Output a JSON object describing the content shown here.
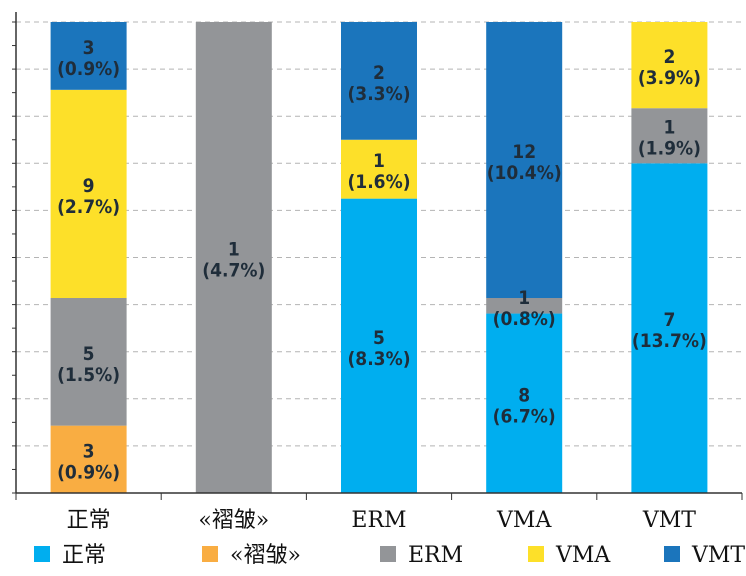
{
  "chart_data": {
    "type": "bar",
    "stacked": true,
    "categories": [
      "正常",
      "«褶皱»",
      "ERM",
      "VMA",
      "VMT"
    ],
    "series": [
      {
        "name": "正常",
        "color": "#00aeef",
        "counts": [
          null,
          null,
          "5",
          "8",
          "7"
        ],
        "percents": [
          null,
          null,
          "(8.3%)",
          "(6.7%)",
          "(13.7%)"
        ],
        "values": [
          0,
          0,
          62.5,
          38.1,
          70.0
        ]
      },
      {
        "name": "«褶皱»",
        "color": "#f9ad42",
        "counts": [
          "3",
          null,
          null,
          null,
          null
        ],
        "percents": [
          "(0.9%)",
          null,
          null,
          null,
          null
        ],
        "values": [
          14.3,
          0,
          0,
          0,
          0
        ]
      },
      {
        "name": "ERM",
        "color": "#939598",
        "counts": [
          "5",
          "1",
          null,
          "1",
          "1"
        ],
        "percents": [
          "(1.5%)",
          "(4.7%)",
          null,
          "(0.8%)",
          "(1.9%)"
        ],
        "values": [
          27.1,
          100,
          0,
          3.3,
          11.7
        ]
      },
      {
        "name": "VMA",
        "color": "#fde029",
        "counts": [
          "9",
          null,
          "1",
          null,
          "2"
        ],
        "percents": [
          "(2.7%)",
          null,
          "(1.6%)",
          null,
          "(3.9%)"
        ],
        "values": [
          44.2,
          0,
          12.5,
          0,
          18.3
        ]
      },
      {
        "name": "VMT",
        "color": "#1b75bc",
        "counts": [
          "3",
          null,
          "2",
          "12",
          null
        ],
        "percents": [
          "(0.9%)",
          null,
          "(3.3%)",
          "(10.4%)",
          null
        ],
        "values": [
          14.4,
          0,
          25.0,
          58.6,
          0
        ]
      }
    ],
    "ylim": [
      0,
      100
    ],
    "grid": true,
    "legend_position": "bottom"
  }
}
